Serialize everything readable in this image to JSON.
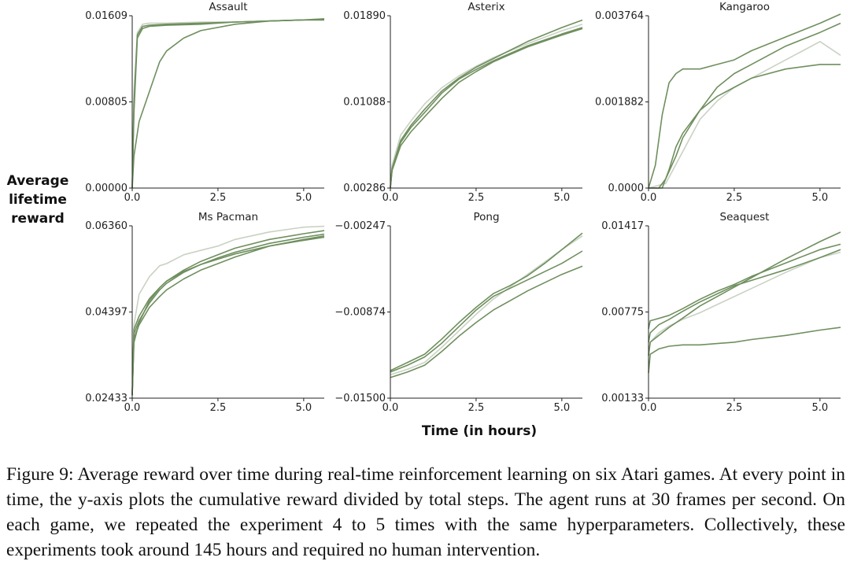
{
  "figure": {
    "ylabel_lines": [
      "Average",
      "lifetime",
      "reward"
    ],
    "xlabel": "Time (in hours)",
    "caption": "Figure 9: Average reward over time during real-time reinforcement learning on six Atari games. At every point in time, the y-axis plots the cumulative reward divided by total steps. The agent runs at 30 frames per second. On each game, we repeated the experiment 4 to 5 times with the same hyperparameters. Collectively, these experiments took around 145 hours and required no human intervention."
  },
  "colors": {
    "dark": "#6f8f5e",
    "light": "#c9d2c3",
    "axis": "#222222"
  },
  "chart_data": [
    {
      "type": "line",
      "title": "Assault",
      "xlim": [
        0,
        5.6
      ],
      "ylim": [
        0.0,
        0.01609
      ],
      "xticks": [
        "0.0",
        "2.5",
        "5.0"
      ],
      "yticks": [
        "0.00000",
        "0.00805",
        "0.01609"
      ],
      "series": [
        {
          "tone": "light",
          "x": [
            0,
            0.05,
            0.15,
            0.3,
            0.5,
            1,
            2,
            3,
            4,
            5,
            5.6
          ],
          "y": [
            0,
            0.009,
            0.0145,
            0.0153,
            0.0154,
            0.0154,
            0.0155,
            0.0155,
            0.0156,
            0.0157,
            0.0158
          ]
        },
        {
          "tone": "dark",
          "x": [
            0,
            0.05,
            0.15,
            0.3,
            0.5,
            1,
            2,
            3,
            4,
            5,
            5.6
          ],
          "y": [
            0,
            0.008,
            0.0143,
            0.0151,
            0.0152,
            0.0153,
            0.0154,
            0.0155,
            0.0156,
            0.0157,
            0.0157
          ]
        },
        {
          "tone": "dark",
          "x": [
            0,
            0.05,
            0.15,
            0.3,
            0.5,
            1,
            2,
            3,
            4,
            5,
            5.6
          ],
          "y": [
            0,
            0.007,
            0.014,
            0.0149,
            0.0151,
            0.0152,
            0.0153,
            0.0155,
            0.0156,
            0.0157,
            0.0158
          ]
        },
        {
          "tone": "dark",
          "x": [
            0,
            0.05,
            0.2,
            0.5,
            0.8,
            1,
            1.5,
            2,
            3,
            4,
            5,
            5.6
          ],
          "y": [
            0,
            0.003,
            0.0062,
            0.009,
            0.0118,
            0.0128,
            0.014,
            0.0147,
            0.0153,
            0.0156,
            0.0157,
            0.0157
          ]
        }
      ]
    },
    {
      "type": "line",
      "title": "Asterix",
      "xlim": [
        0,
        5.6
      ],
      "ylim": [
        0.00286,
        0.0189
      ],
      "xticks": [
        "0.0",
        "2.5",
        "5.0"
      ],
      "yticks": [
        "0.00286",
        "0.01088",
        "0.01890"
      ],
      "series": [
        {
          "tone": "light",
          "x": [
            0,
            0.05,
            0.3,
            0.6,
            1,
            1.5,
            2,
            2.5,
            3,
            4,
            5,
            5.6
          ],
          "y": [
            0.0031,
            0.005,
            0.0078,
            0.0091,
            0.0107,
            0.0122,
            0.0133,
            0.0142,
            0.015,
            0.0163,
            0.0175,
            0.0181
          ]
        },
        {
          "tone": "dark",
          "x": [
            0,
            0.05,
            0.3,
            0.6,
            1,
            1.5,
            2,
            2.5,
            3,
            4,
            5,
            5.6
          ],
          "y": [
            0.0029,
            0.0047,
            0.0073,
            0.0087,
            0.0102,
            0.0119,
            0.0131,
            0.0141,
            0.0149,
            0.0165,
            0.0178,
            0.0185
          ]
        },
        {
          "tone": "dark",
          "x": [
            0,
            0.05,
            0.3,
            0.6,
            1,
            1.5,
            2,
            2.5,
            3,
            4,
            5,
            5.6
          ],
          "y": [
            0.0029,
            0.0046,
            0.0071,
            0.0085,
            0.0099,
            0.0117,
            0.013,
            0.0139,
            0.0147,
            0.0161,
            0.0172,
            0.0178
          ]
        },
        {
          "tone": "dark",
          "x": [
            0,
            0.05,
            0.3,
            0.6,
            1,
            1.5,
            2,
            2.5,
            3,
            4,
            5,
            5.6
          ],
          "y": [
            0.0029,
            0.0045,
            0.0068,
            0.0081,
            0.0095,
            0.0112,
            0.0127,
            0.0137,
            0.0146,
            0.016,
            0.0171,
            0.0177
          ]
        }
      ]
    },
    {
      "type": "line",
      "title": "Kangaroo",
      "xlim": [
        0,
        5.6
      ],
      "ylim": [
        0.0,
        0.003764
      ],
      "xticks": [
        "0.0",
        "2.5",
        "5.0"
      ],
      "yticks": [
        "0.0000",
        "0.001882",
        "0.003764"
      ],
      "series": [
        {
          "tone": "light",
          "x": [
            0,
            0.5,
            1.0,
            1.5,
            2,
            2.5,
            3,
            3.5,
            4,
            4.5,
            5,
            5.6
          ],
          "y": [
            0,
            0.0001,
            0.0008,
            0.0015,
            0.0019,
            0.0022,
            0.0024,
            0.0026,
            0.0028,
            0.003,
            0.0032,
            0.0029
          ]
        },
        {
          "tone": "dark",
          "x": [
            0,
            0.2,
            0.4,
            0.6,
            0.8,
            1,
            1.5,
            2,
            2.5,
            3,
            4,
            5,
            5.6
          ],
          "y": [
            0,
            0.0005,
            0.0016,
            0.0023,
            0.0025,
            0.0026,
            0.0026,
            0.0027,
            0.0028,
            0.003,
            0.0033,
            0.0036,
            0.0038
          ]
        },
        {
          "tone": "dark",
          "x": [
            0,
            0.3,
            0.5,
            0.8,
            1,
            1.5,
            2,
            2.5,
            3,
            4,
            5,
            5.6
          ],
          "y": [
            0,
            0.0,
            0.0002,
            0.0007,
            0.0011,
            0.0017,
            0.0022,
            0.0025,
            0.0027,
            0.0031,
            0.0034,
            0.0036
          ]
        },
        {
          "tone": "dark",
          "x": [
            0,
            0.4,
            0.6,
            0.8,
            1,
            1.5,
            2,
            2.5,
            3,
            4,
            5,
            5.6
          ],
          "y": [
            0,
            0.0,
            0.0004,
            0.0009,
            0.0012,
            0.0017,
            0.002,
            0.0022,
            0.0024,
            0.0026,
            0.0027,
            0.0027
          ]
        }
      ]
    },
    {
      "type": "line",
      "title": "Ms Pacman",
      "xlim": [
        0,
        5.6
      ],
      "ylim": [
        0.02433,
        0.0636
      ],
      "xticks": [
        "0.0",
        "2.5",
        "5.0"
      ],
      "yticks": [
        "0.02433",
        "0.04397",
        "0.06360"
      ],
      "series": [
        {
          "tone": "light",
          "x": [
            0,
            0.05,
            0.2,
            0.5,
            0.8,
            1,
            1.5,
            2,
            2.5,
            3,
            4,
            5,
            5.6
          ],
          "y": [
            0.026,
            0.041,
            0.048,
            0.052,
            0.0545,
            0.055,
            0.057,
            0.058,
            0.059,
            0.0605,
            0.0622,
            0.0633,
            0.0635
          ]
        },
        {
          "tone": "dark",
          "x": [
            0,
            0.05,
            0.2,
            0.5,
            0.8,
            1,
            1.5,
            2,
            2.5,
            3,
            4,
            5,
            5.6
          ],
          "y": [
            0.025,
            0.04,
            0.043,
            0.047,
            0.0495,
            0.051,
            0.0535,
            0.0555,
            0.057,
            0.0585,
            0.0605,
            0.0618,
            0.0625
          ]
        },
        {
          "tone": "dark",
          "x": [
            0,
            0.05,
            0.2,
            0.5,
            0.8,
            1,
            1.5,
            2,
            2.5,
            3,
            4,
            5,
            5.6
          ],
          "y": [
            0.025,
            0.039,
            0.042,
            0.046,
            0.049,
            0.0505,
            0.053,
            0.0548,
            0.0563,
            0.0576,
            0.0596,
            0.061,
            0.0617
          ]
        },
        {
          "tone": "dark",
          "x": [
            0,
            0.05,
            0.2,
            0.5,
            0.8,
            1,
            1.5,
            2,
            2.5,
            3,
            4,
            5,
            5.6
          ],
          "y": [
            0.025,
            0.038,
            0.041,
            0.045,
            0.0475,
            0.049,
            0.0515,
            0.0535,
            0.055,
            0.0565,
            0.059,
            0.0605,
            0.0613
          ]
        },
        {
          "tone": "dark",
          "x": [
            0,
            0.05,
            0.2,
            0.5,
            0.8,
            1,
            1.5,
            2,
            2.5,
            3,
            4,
            5,
            5.6
          ],
          "y": [
            0.025,
            0.037,
            0.0415,
            0.0465,
            0.0495,
            0.051,
            0.0532,
            0.0548,
            0.056,
            0.0572,
            0.059,
            0.0603,
            0.061
          ]
        }
      ]
    },
    {
      "type": "line",
      "title": "Pong",
      "xlim": [
        0,
        5.6
      ],
      "ylim": [
        -0.015,
        -0.00247
      ],
      "xticks": [
        "0.0",
        "2.5",
        "5.0"
      ],
      "yticks": [
        "−0.01500",
        "−0.00874",
        "−0.00247"
      ],
      "series": [
        {
          "tone": "light",
          "x": [
            0,
            0.5,
            1,
            1.5,
            2,
            2.5,
            3,
            3.5,
            4,
            4.5,
            5,
            5.6
          ],
          "y": [
            -0.0133,
            -0.0129,
            -0.0124,
            -0.0113,
            -0.0101,
            -0.0089,
            -0.0078,
            -0.0069,
            -0.006,
            -0.0051,
            -0.0042,
            -0.0032
          ]
        },
        {
          "tone": "dark",
          "x": [
            0,
            0.5,
            1,
            1.5,
            2,
            2.5,
            3,
            3.5,
            4,
            4.5,
            5,
            5.6
          ],
          "y": [
            -0.013,
            -0.0124,
            -0.0118,
            -0.0107,
            -0.0095,
            -0.0084,
            -0.0074,
            -0.0068,
            -0.0061,
            -0.0052,
            -0.0042,
            -0.003
          ]
        },
        {
          "tone": "dark",
          "x": [
            0,
            0.5,
            1,
            1.5,
            2,
            2.5,
            3,
            3.5,
            4,
            4.5,
            5,
            5.6
          ],
          "y": [
            -0.0131,
            -0.0126,
            -0.012,
            -0.011,
            -0.0098,
            -0.0086,
            -0.0076,
            -0.007,
            -0.0064,
            -0.0058,
            -0.0052,
            -0.0043
          ]
        },
        {
          "tone": "dark",
          "x": [
            0,
            0.5,
            1,
            1.5,
            2,
            2.5,
            3,
            3.5,
            4,
            4.5,
            5,
            5.6
          ],
          "y": [
            -0.0135,
            -0.0131,
            -0.0126,
            -0.0116,
            -0.0105,
            -0.0095,
            -0.0086,
            -0.0079,
            -0.0072,
            -0.0066,
            -0.006,
            -0.0054
          ]
        }
      ]
    },
    {
      "type": "line",
      "title": "Seaquest",
      "xlim": [
        0,
        5.6
      ],
      "ylim": [
        0.00133,
        0.01417
      ],
      "xticks": [
        "0.0",
        "2.5",
        "5.0"
      ],
      "yticks": [
        "0.00133",
        "0.00775",
        "0.01417"
      ],
      "series": [
        {
          "tone": "light",
          "x": [
            0,
            0.05,
            0.3,
            0.6,
            1,
            1.5,
            2,
            2.5,
            3,
            4,
            5,
            5.6
          ],
          "y": [
            0.0045,
            0.0055,
            0.0062,
            0.0067,
            0.0072,
            0.0077,
            0.0083,
            0.0089,
            0.0095,
            0.0107,
            0.0118,
            0.0122
          ]
        },
        {
          "tone": "dark",
          "x": [
            0,
            0.05,
            0.2,
            0.6,
            1,
            1.5,
            2,
            2.5,
            3,
            4,
            5,
            5.6
          ],
          "y": [
            0.0065,
            0.0071,
            0.0072,
            0.0075,
            0.008,
            0.0087,
            0.0093,
            0.0098,
            0.0104,
            0.0114,
            0.0124,
            0.0128
          ]
        },
        {
          "tone": "dark",
          "x": [
            0,
            0.05,
            0.3,
            0.6,
            1,
            1.5,
            2,
            2.5,
            3,
            4,
            5,
            5.6
          ],
          "y": [
            0.0055,
            0.0062,
            0.0068,
            0.0072,
            0.0078,
            0.0085,
            0.0091,
            0.0097,
            0.0101,
            0.0109,
            0.0118,
            0.0124
          ]
        },
        {
          "tone": "dark",
          "x": [
            0,
            0.05,
            0.3,
            0.6,
            1,
            1.5,
            2,
            2.5,
            3,
            4,
            5,
            5.6
          ],
          "y": [
            0.0045,
            0.0055,
            0.006,
            0.0066,
            0.0073,
            0.0082,
            0.0089,
            0.0096,
            0.0103,
            0.0117,
            0.013,
            0.0137
          ]
        },
        {
          "tone": "dark",
          "x": [
            0,
            0.05,
            0.3,
            0.6,
            1,
            1.5,
            2,
            2.5,
            3,
            4,
            5,
            5.6
          ],
          "y": [
            0.0032,
            0.0046,
            0.005,
            0.0052,
            0.0053,
            0.0053,
            0.0054,
            0.0055,
            0.0057,
            0.006,
            0.0064,
            0.0066
          ]
        }
      ]
    }
  ]
}
